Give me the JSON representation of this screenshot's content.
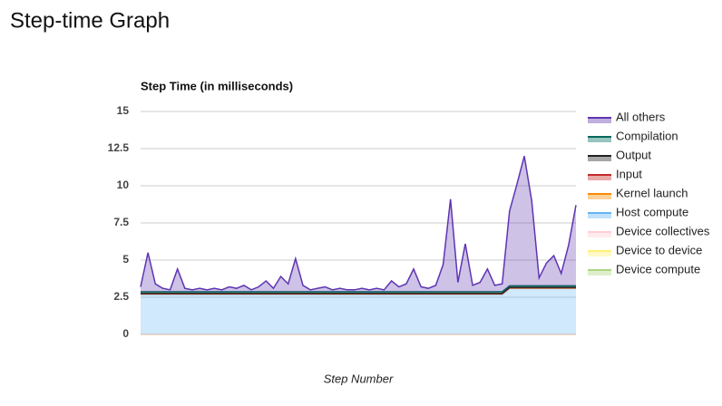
{
  "page_title": "Step-time Graph",
  "chart_data": {
    "type": "stacked_area",
    "title": "Step Time (in milliseconds)",
    "x_label": "Step Number",
    "categories": [
      null,
      null,
      null,
      null,
      null,
      null,
      null,
      null,
      null,
      null,
      null,
      null,
      null,
      null,
      null,
      null,
      null,
      null,
      null,
      null,
      null,
      null,
      null,
      null,
      null,
      null,
      null,
      null,
      null,
      null,
      null,
      null,
      null,
      null,
      null,
      null,
      null,
      null,
      null,
      null,
      null,
      null,
      null,
      null,
      null,
      null,
      null,
      null,
      null,
      null,
      null,
      null,
      null,
      null,
      null,
      null,
      null,
      null,
      null,
      null
    ],
    "ylim": [
      0,
      15
    ],
    "yticks": [
      0,
      2.5,
      5,
      7.5,
      10,
      12.5,
      15
    ],
    "grid": true,
    "legend": "right",
    "series": [
      {
        "name": "All others",
        "color": "#5e35b1",
        "values": [
          0.33,
          2.63,
          0.53,
          0.23,
          0.13,
          1.53,
          0.23,
          0.13,
          0.23,
          0.13,
          0.23,
          0.13,
          0.33,
          0.23,
          0.43,
          0.13,
          0.33,
          0.73,
          0.23,
          1.03,
          0.53,
          2.23,
          0.43,
          0.13,
          0.23,
          0.33,
          0.13,
          0.23,
          0.13,
          0.13,
          0.23,
          0.13,
          0.23,
          0.13,
          0.73,
          0.33,
          0.53,
          1.53,
          0.33,
          0.23,
          0.43,
          1.83,
          6.23,
          0.63,
          3.23,
          0.43,
          0.63,
          1.53,
          0.43,
          0.53,
          5.03,
          6.83,
          8.73,
          5.73,
          0.53,
          1.53,
          2.03,
          0.83,
          2.73,
          5.43
        ]
      },
      {
        "name": "Compilation",
        "color": "#00695c",
        "values": [
          0.1,
          0.1,
          0.1,
          0.1,
          0.1,
          0.1,
          0.1,
          0.1,
          0.1,
          0.1,
          0.1,
          0.1,
          0.1,
          0.1,
          0.1,
          0.1,
          0.1,
          0.1,
          0.1,
          0.1,
          0.1,
          0.1,
          0.1,
          0.1,
          0.1,
          0.1,
          0.1,
          0.1,
          0.1,
          0.1,
          0.1,
          0.1,
          0.1,
          0.1,
          0.1,
          0.1,
          0.1,
          0.1,
          0.1,
          0.1,
          0.1,
          0.1,
          0.1,
          0.1,
          0.1,
          0.1,
          0.1,
          0.1,
          0.1,
          0.1,
          0.1,
          0.1,
          0.1,
          0.1,
          0.1,
          0.1,
          0.1,
          0.1,
          0.1,
          0.1
        ]
      },
      {
        "name": "Output",
        "color": "#212121",
        "values": [
          0.03,
          0.03,
          0.03,
          0.03,
          0.03,
          0.03,
          0.03,
          0.03,
          0.03,
          0.03,
          0.03,
          0.03,
          0.03,
          0.03,
          0.03,
          0.03,
          0.03,
          0.03,
          0.03,
          0.03,
          0.03,
          0.03,
          0.03,
          0.03,
          0.03,
          0.03,
          0.03,
          0.03,
          0.03,
          0.03,
          0.03,
          0.03,
          0.03,
          0.03,
          0.03,
          0.03,
          0.03,
          0.03,
          0.03,
          0.03,
          0.03,
          0.03,
          0.03,
          0.03,
          0.03,
          0.03,
          0.03,
          0.03,
          0.03,
          0.03,
          0.03,
          0.03,
          0.03,
          0.03,
          0.03,
          0.03,
          0.03,
          0.03,
          0.03,
          0.03
        ]
      },
      {
        "name": "Input",
        "color": "#c62828",
        "values": [
          0.02,
          0.02,
          0.02,
          0.02,
          0.02,
          0.02,
          0.02,
          0.02,
          0.02,
          0.02,
          0.02,
          0.02,
          0.02,
          0.02,
          0.02,
          0.02,
          0.02,
          0.02,
          0.02,
          0.02,
          0.02,
          0.02,
          0.02,
          0.02,
          0.02,
          0.02,
          0.02,
          0.02,
          0.02,
          0.02,
          0.02,
          0.02,
          0.02,
          0.02,
          0.02,
          0.02,
          0.02,
          0.02,
          0.02,
          0.02,
          0.02,
          0.02,
          0.02,
          0.02,
          0.02,
          0.02,
          0.02,
          0.02,
          0.02,
          0.02,
          0.02,
          0.02,
          0.02,
          0.02,
          0.02,
          0.02,
          0.02,
          0.02,
          0.02,
          0.02
        ]
      },
      {
        "name": "Kernel launch",
        "color": "#fb8c00",
        "values": [
          0.02,
          0.02,
          0.02,
          0.02,
          0.02,
          0.02,
          0.02,
          0.02,
          0.02,
          0.02,
          0.02,
          0.02,
          0.02,
          0.02,
          0.02,
          0.02,
          0.02,
          0.02,
          0.02,
          0.02,
          0.02,
          0.02,
          0.02,
          0.02,
          0.02,
          0.02,
          0.02,
          0.02,
          0.02,
          0.02,
          0.02,
          0.02,
          0.02,
          0.02,
          0.02,
          0.02,
          0.02,
          0.02,
          0.02,
          0.02,
          0.02,
          0.02,
          0.02,
          0.02,
          0.02,
          0.02,
          0.02,
          0.02,
          0.02,
          0.02,
          0.02,
          0.02,
          0.02,
          0.02,
          0.02,
          0.02,
          0.02,
          0.02,
          0.02,
          0.02
        ]
      },
      {
        "name": "Host compute",
        "color": "#64b5f6",
        "values": [
          2.7,
          2.7,
          2.7,
          2.7,
          2.7,
          2.7,
          2.7,
          2.7,
          2.7,
          2.7,
          2.7,
          2.7,
          2.7,
          2.7,
          2.7,
          2.7,
          2.7,
          2.7,
          2.7,
          2.7,
          2.7,
          2.7,
          2.7,
          2.7,
          2.7,
          2.7,
          2.7,
          2.7,
          2.7,
          2.7,
          2.7,
          2.7,
          2.7,
          2.7,
          2.7,
          2.7,
          2.7,
          2.7,
          2.7,
          2.7,
          2.7,
          2.7,
          2.7,
          2.7,
          2.7,
          2.7,
          2.7,
          2.7,
          2.7,
          2.7,
          3.1,
          3.1,
          3.1,
          3.1,
          3.1,
          3.1,
          3.1,
          3.1,
          3.1,
          3.1
        ]
      },
      {
        "name": "Device collectives",
        "color": "#ffcdd2",
        "values": [
          0,
          0,
          0,
          0,
          0,
          0,
          0,
          0,
          0,
          0,
          0,
          0,
          0,
          0,
          0,
          0,
          0,
          0,
          0,
          0,
          0,
          0,
          0,
          0,
          0,
          0,
          0,
          0,
          0,
          0,
          0,
          0,
          0,
          0,
          0,
          0,
          0,
          0,
          0,
          0,
          0,
          0,
          0,
          0,
          0,
          0,
          0,
          0,
          0,
          0,
          0,
          0,
          0,
          0,
          0,
          0,
          0,
          0,
          0,
          0
        ]
      },
      {
        "name": "Device to device",
        "color": "#fff176",
        "values": [
          0,
          0,
          0,
          0,
          0,
          0,
          0,
          0,
          0,
          0,
          0,
          0,
          0,
          0,
          0,
          0,
          0,
          0,
          0,
          0,
          0,
          0,
          0,
          0,
          0,
          0,
          0,
          0,
          0,
          0,
          0,
          0,
          0,
          0,
          0,
          0,
          0,
          0,
          0,
          0,
          0,
          0,
          0,
          0,
          0,
          0,
          0,
          0,
          0,
          0,
          0,
          0,
          0,
          0,
          0,
          0,
          0,
          0,
          0,
          0
        ]
      },
      {
        "name": "Device compute",
        "color": "#aed581",
        "values": [
          0,
          0,
          0,
          0,
          0,
          0,
          0,
          0,
          0,
          0,
          0,
          0,
          0,
          0,
          0,
          0,
          0,
          0,
          0,
          0,
          0,
          0,
          0,
          0,
          0,
          0,
          0,
          0,
          0,
          0,
          0,
          0,
          0,
          0,
          0,
          0,
          0,
          0,
          0,
          0,
          0,
          0,
          0,
          0,
          0,
          0,
          0,
          0,
          0,
          0,
          0,
          0,
          0,
          0,
          0,
          0,
          0,
          0,
          0,
          0
        ]
      }
    ]
  }
}
